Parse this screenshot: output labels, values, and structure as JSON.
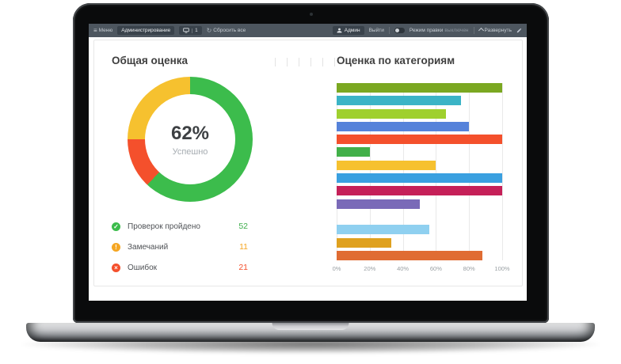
{
  "colors": {
    "navbar_bg": "#4d565f",
    "navbar_button_bg": "#39424b",
    "success_green": "#3cbc4c",
    "warning_orange": "#f5a623",
    "error_red": "#f4502c",
    "donut_yellow": "#f6c12f"
  },
  "navbar": {
    "menu_label": "Меню",
    "admin_label": "Администрирование",
    "apps_badge": "1",
    "reset_label": "Сбросить все",
    "user_label": "Админ",
    "logout_label": "Выйти",
    "edit_mode_label": "Режим правки",
    "edit_mode_state": "выключен",
    "expand_label": "Развернуть"
  },
  "overall": {
    "title": "Общая оценка",
    "percent": "62%",
    "percent_caption": "Успешно",
    "legend": [
      {
        "icon": "check-circle",
        "glyph": "✓",
        "color": "#3cbc4c",
        "label": "Проверок пройдено",
        "value": "52",
        "value_color": "#3fae4c"
      },
      {
        "icon": "warning-circle",
        "glyph": "!",
        "color": "#f5a623",
        "label": "Замечаний",
        "value": "11",
        "value_color": "#f5a623"
      },
      {
        "icon": "error-circle",
        "glyph": "×",
        "color": "#f4502c",
        "label": "Ошибок",
        "value": "21",
        "value_color": "#f4502c"
      }
    ]
  },
  "categories": {
    "title": "Оценка по категориям"
  },
  "chart_data": [
    {
      "type": "pie",
      "subtype": "donut",
      "title": "Общая оценка",
      "start": "top",
      "direction": "clockwise",
      "center_label": "62%",
      "center_caption": "Успешно",
      "segments": [
        {
          "label": "Успешно",
          "value": 62,
          "color": "#3cbc4c"
        },
        {
          "label": "Замечаний",
          "value": 13,
          "color": "#f4502c"
        },
        {
          "label": "Ошибок",
          "value": 25,
          "color": "#f6c12f"
        }
      ]
    },
    {
      "type": "bar",
      "orientation": "horizontal",
      "title": "Оценка по категориям",
      "xlim": [
        0,
        100
      ],
      "grid": true,
      "tick_labels": [
        "0%",
        "20%",
        "40%",
        "60%",
        "80%",
        "100%"
      ],
      "values": [
        100,
        75,
        66,
        80,
        100,
        20,
        60,
        100,
        100,
        50,
        0,
        56,
        33,
        88
      ],
      "colors": [
        "#7ba821",
        "#3bb4c6",
        "#9fd02e",
        "#5582da",
        "#f4502c",
        "#42b049",
        "#f6c12f",
        "#3aa0e0",
        "#c52058",
        "#7a6ab8",
        "transparent",
        "#8fd0f0",
        "#dfa11f",
        "#e06c33"
      ]
    }
  ]
}
